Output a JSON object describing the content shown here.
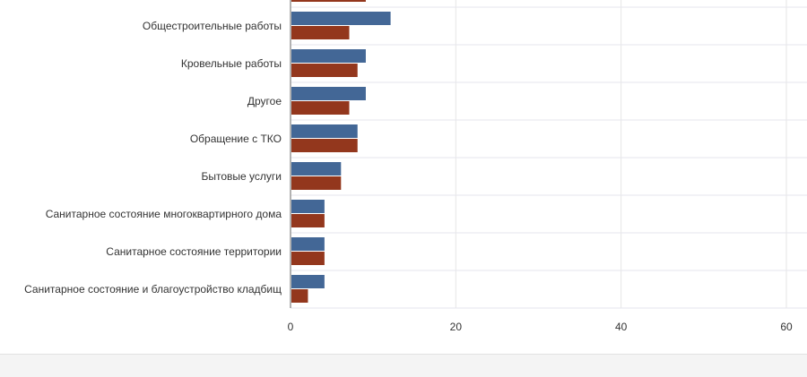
{
  "chart_data": {
    "type": "bar",
    "orientation": "horizontal",
    "categories": [
      "",
      "Общестроительные работы",
      "Кровельные работы",
      "Другое",
      "Обращение с ТКО",
      "Бытовые услуги",
      "Санитарное состояние многоквартирного дома",
      "Санитарное состояние территории",
      "Санитарное состояние и благоустройство кладбищ"
    ],
    "series": [
      {
        "color": "#436796",
        "values": [
          null,
          12,
          9,
          9,
          8,
          6,
          4,
          4,
          4
        ]
      },
      {
        "color": "#93371d",
        "values": [
          9,
          7,
          8,
          7,
          8,
          6,
          4,
          4,
          2
        ]
      }
    ],
    "xlim": [
      0,
      62.5
    ],
    "x_ticks": [
      "0",
      "20",
      "40",
      "60"
    ],
    "grid": true,
    "xlabel": "",
    "ylabel": ""
  }
}
